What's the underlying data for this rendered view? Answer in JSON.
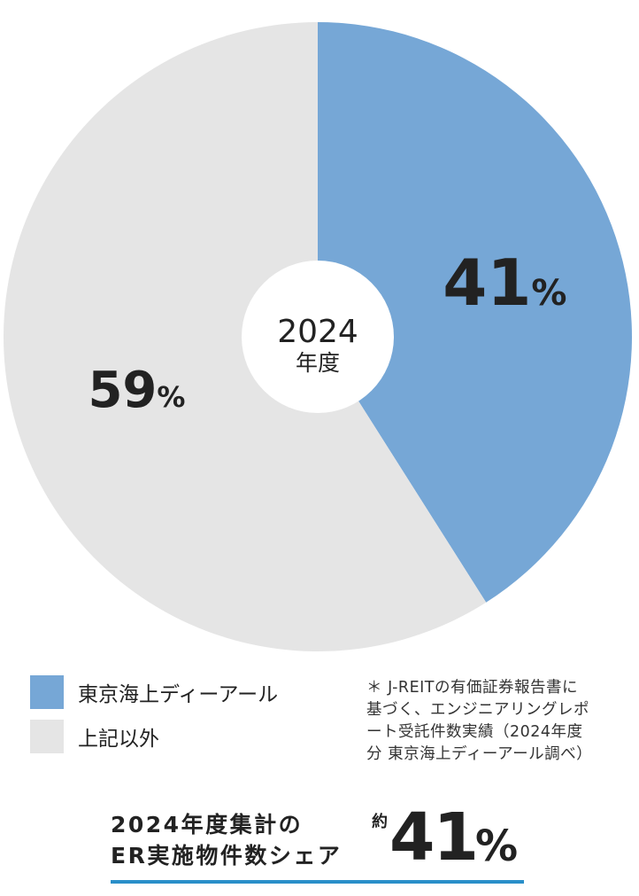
{
  "colors": {
    "tokio": "#76a7d6",
    "other": "#e5e5e5",
    "center": "#ffffff",
    "underline": "#2a8fc9"
  },
  "chart_data": {
    "type": "pie",
    "title": "",
    "center_label": {
      "year": "2024",
      "unit": "年度"
    },
    "slices": [
      {
        "name": "東京海上ディーアール",
        "value": 41,
        "label": "41",
        "unit": "%",
        "color": "#76a7d6"
      },
      {
        "name": "上記以外",
        "value": 59,
        "label": "59",
        "unit": "%",
        "color": "#e5e5e5"
      }
    ],
    "legend_placement": "bottom-left"
  },
  "legend": {
    "items": [
      {
        "label": "東京海上ディーアール",
        "color": "#76a7d6"
      },
      {
        "label": "上記以外",
        "color": "#e5e5e5"
      }
    ]
  },
  "footnote": {
    "lines": [
      "＊ J-REITの有価証券報告書に",
      "基づく、エンジニアリングレポ",
      "ート受託件数実績（2024年度",
      "分 東京海上ディーアール調べ）"
    ]
  },
  "share": {
    "caption_line1": "2024年度集計の",
    "caption_line2": "ER実施物件数シェア",
    "prefix": "約",
    "value": "41",
    "unit": "%"
  }
}
